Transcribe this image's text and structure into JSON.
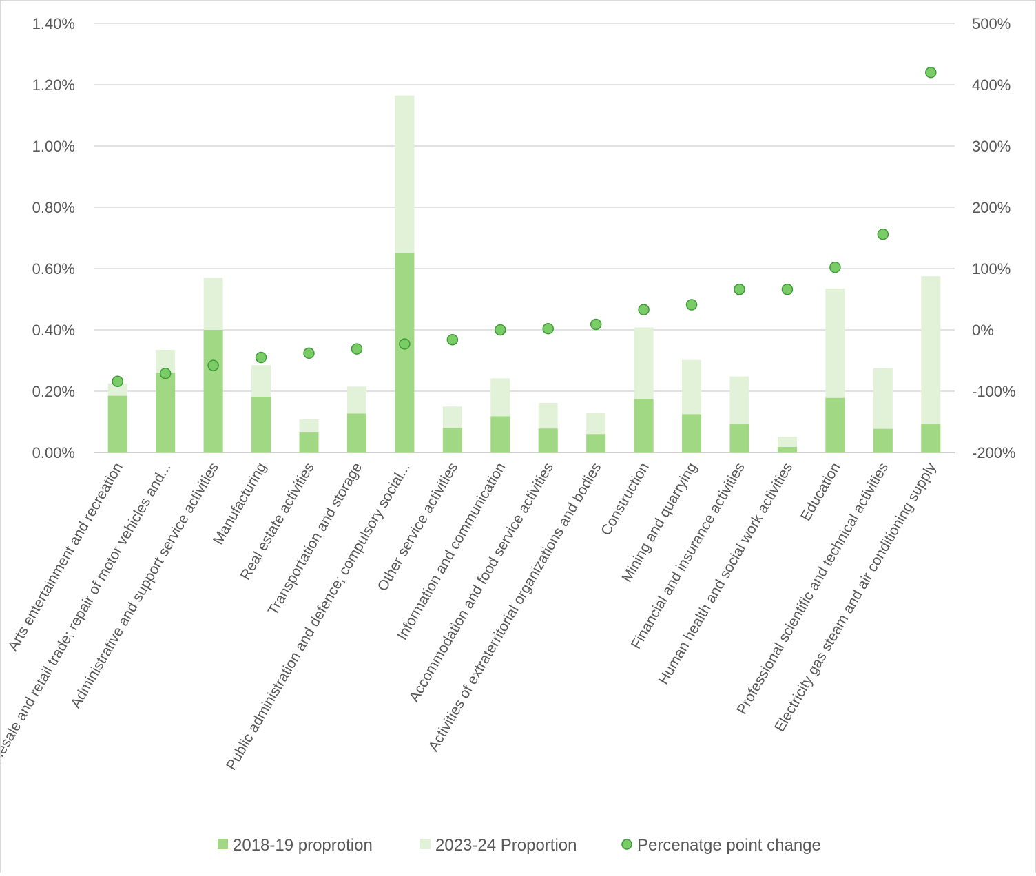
{
  "chart_data": {
    "type": "bar",
    "subtype": "stacked bar with scatter on secondary axis",
    "categories": [
      "Arts entertainment and recreation",
      "Wholesale and retail trade; repair of motor vehicles and...",
      "Administrative and support service activities",
      "Manufacturing",
      "Real estate activities",
      "Transportation and storage",
      "Public administration and defence; compulsory social...",
      "Other service activities",
      "Information and communication",
      "Accommodation and food service activities",
      "Activities of extraterritorial organizations and bodies",
      "Construction",
      "Mining and quarrying",
      "Financial and insurance activities",
      "Human health and social work activities",
      "Education",
      "Professional scientific and technical activities",
      "Electricity gas steam and air conditioning supply"
    ],
    "series": [
      {
        "name": "2018-19 proprotion",
        "axis": "left",
        "color": "#a1d883",
        "values": [
          0.185,
          0.26,
          0.4,
          0.182,
          0.065,
          0.127,
          0.65,
          0.08,
          0.118,
          0.078,
          0.06,
          0.175,
          0.125,
          0.092,
          0.018,
          0.178,
          0.077,
          0.092
        ]
      },
      {
        "name": "2023-24 Proportion",
        "axis": "left",
        "color": "#e2f2d8",
        "values": [
          0.225,
          0.335,
          0.57,
          0.285,
          0.108,
          0.215,
          1.165,
          0.15,
          0.242,
          0.162,
          0.128,
          0.408,
          0.302,
          0.248,
          0.052,
          0.535,
          0.275,
          0.575
        ]
      },
      {
        "name": "Percenatge point change",
        "axis": "right",
        "type": "scatter",
        "color": "#79cc66",
        "values": [
          -84,
          -71,
          -58,
          -45,
          -38,
          -31,
          -23,
          -16,
          0,
          2,
          9,
          33,
          41,
          66,
          66,
          102,
          156,
          420
        ]
      }
    ],
    "y_left": {
      "ylim": [
        0,
        1.4
      ],
      "ticks": [
        "0.00%",
        "0.20%",
        "0.40%",
        "0.60%",
        "0.80%",
        "1.00%",
        "1.20%",
        "1.40%"
      ]
    },
    "y_right": {
      "ylim": [
        -200,
        500
      ],
      "ticks": [
        "-200%",
        "-100%",
        "0%",
        "100%",
        "200%",
        "300%",
        "400%",
        "500%"
      ]
    },
    "title": "",
    "xlabel": "",
    "ylabel": "",
    "grid": true,
    "legend_position": "bottom"
  }
}
